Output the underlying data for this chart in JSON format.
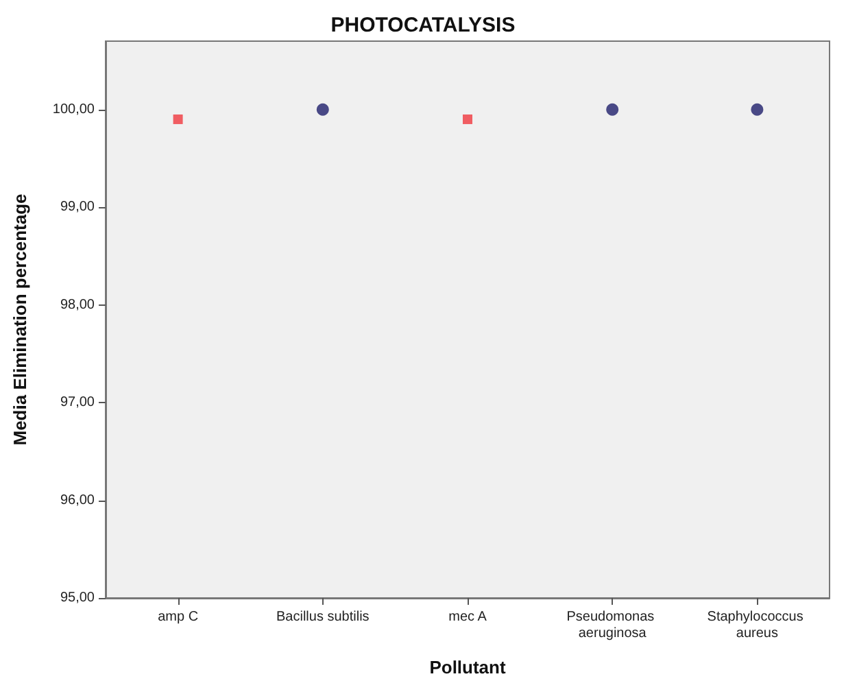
{
  "chart_data": {
    "type": "scatter",
    "title": "PHOTOCATALYSIS",
    "xlabel": "Pollutant",
    "ylabel": "Media Elimination percentage",
    "categories": [
      "amp C",
      "Bacillus subtilis",
      "mec A",
      "Pseudomonas aeruginosa",
      "Staphylococcus aureus"
    ],
    "series": [
      {
        "color": "#f0383f",
        "marker": "square",
        "values": [
          99.9,
          null,
          99.9,
          null,
          null
        ]
      },
      {
        "color": "#1f1f6b",
        "marker": "circle",
        "values": [
          null,
          100.0,
          null,
          100.0,
          100.0
        ]
      }
    ],
    "ylim": [
      95,
      100.7
    ],
    "yticks": [
      {
        "value": 95,
        "label": "95,00"
      },
      {
        "value": 96,
        "label": "96,00"
      },
      {
        "value": 97,
        "label": "97,00"
      },
      {
        "value": 98,
        "label": "98,00"
      },
      {
        "value": 99,
        "label": "99,00"
      },
      {
        "value": 100,
        "label": "100,00"
      }
    ],
    "grid": false
  }
}
